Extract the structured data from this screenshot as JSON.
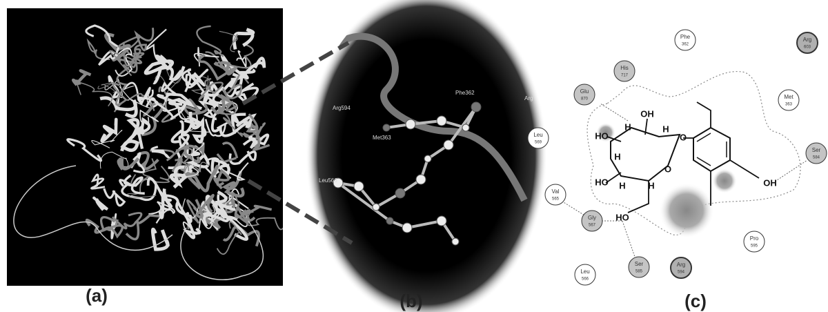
{
  "panels": [
    {
      "label": "(a)"
    },
    {
      "label": "(b)",
      "residue_labels": [
        "Phe362",
        "Arg594",
        "Met363",
        "Leu566",
        "Arg"
      ]
    },
    {
      "label": "(c)",
      "residues": [
        {
          "name": "Phe",
          "number": "362",
          "color": "#ffffff"
        },
        {
          "name": "Arg",
          "number": "603",
          "color": "#b0b0b0"
        },
        {
          "name": "His",
          "number": "717",
          "color": "#c4c4c4"
        },
        {
          "name": "Glu",
          "number": "870",
          "color": "#c4c4c4"
        },
        {
          "name": "Met",
          "number": "363",
          "color": "#ffffff"
        },
        {
          "name": "Leu",
          "number": "569",
          "color": "#ffffff"
        },
        {
          "name": "Ser",
          "number": "584",
          "color": "#c4c4c4"
        },
        {
          "name": "Val",
          "number": "565",
          "color": "#ffffff"
        },
        {
          "name": "Gly",
          "number": "567",
          "color": "#c4c4c4"
        },
        {
          "name": "Pro",
          "number": "595",
          "color": "#ffffff"
        },
        {
          "name": "Leu",
          "number": "566",
          "color": "#ffffff"
        },
        {
          "name": "Ser",
          "number": "585",
          "color": "#c4c4c4"
        },
        {
          "name": "Arg",
          "number": "594",
          "color": "#b0b0b0"
        }
      ],
      "atom_labels": [
        "OH",
        "H",
        "H",
        "O",
        "HO",
        "H",
        "O",
        "HO",
        "H",
        "H",
        "HO",
        "OH"
      ]
    }
  ]
}
